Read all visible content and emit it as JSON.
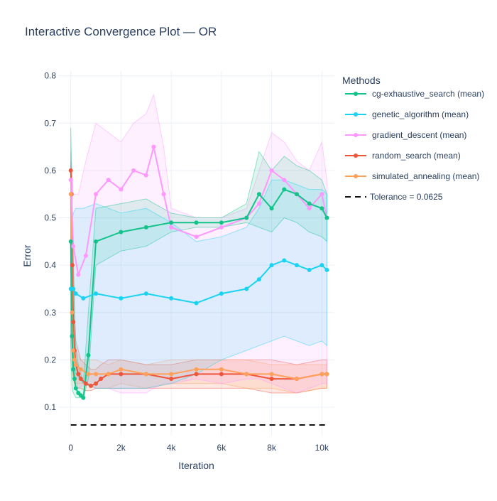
{
  "chart_data": {
    "type": "line",
    "title": "Interactive Convergence Plot — OR",
    "xlabel": "Iteration",
    "ylabel": "Error",
    "xlim": [
      -500,
      10500
    ],
    "ylim": [
      0.04,
      0.81
    ],
    "x_ticks": [
      0,
      2000,
      4000,
      6000,
      8000,
      10000
    ],
    "x_tick_labels": [
      "0",
      "2k",
      "4k",
      "6k",
      "8k",
      "10k"
    ],
    "y_ticks": [
      0.1,
      0.2,
      0.3,
      0.4,
      0.5,
      0.6,
      0.7,
      0.8
    ],
    "y_tick_labels": [
      "0.1",
      "0.2",
      "0.3",
      "0.4",
      "0.5",
      "0.6",
      "0.7",
      "0.8"
    ],
    "grid": true,
    "legend": {
      "title": "Methods",
      "placement": "right"
    },
    "series": [
      {
        "name": "cg-exhaustive_search (mean)",
        "color": "#12c38a",
        "x": [
          0,
          50,
          100,
          150,
          200,
          300,
          400,
          500,
          700,
          1000,
          2000,
          3000,
          4000,
          5000,
          6000,
          7000,
          7500,
          8000,
          8500,
          9000,
          9500,
          10000,
          10200
        ],
        "y": [
          0.45,
          0.25,
          0.18,
          0.16,
          0.14,
          0.13,
          0.125,
          0.12,
          0.21,
          0.45,
          0.47,
          0.48,
          0.49,
          0.49,
          0.49,
          0.5,
          0.55,
          0.52,
          0.56,
          0.55,
          0.53,
          0.52,
          0.5
        ],
        "band_upper": [
          0.69,
          0.55,
          0.42,
          0.3,
          0.22,
          0.19,
          0.17,
          0.15,
          0.3,
          0.52,
          0.53,
          0.54,
          0.51,
          0.5,
          0.5,
          0.53,
          0.64,
          0.6,
          0.63,
          0.61,
          0.6,
          0.58,
          0.55
        ],
        "band_lower": [
          0.2,
          0.14,
          0.13,
          0.125,
          0.12,
          0.12,
          0.12,
          0.12,
          0.16,
          0.4,
          0.43,
          0.44,
          0.47,
          0.48,
          0.48,
          0.49,
          0.48,
          0.47,
          0.5,
          0.49,
          0.47,
          0.46,
          0.45
        ]
      },
      {
        "name": "genetic_algorithm (mean)",
        "color": "#19d3f3",
        "x": [
          0,
          100,
          200,
          500,
          1000,
          2000,
          3000,
          4000,
          5000,
          6000,
          7000,
          7500,
          8000,
          8500,
          9000,
          9500,
          10000,
          10200
        ],
        "y": [
          0.35,
          0.35,
          0.34,
          0.33,
          0.34,
          0.33,
          0.34,
          0.33,
          0.32,
          0.34,
          0.35,
          0.37,
          0.4,
          0.41,
          0.4,
          0.39,
          0.4,
          0.39
        ],
        "band_upper": [
          0.47,
          0.51,
          0.52,
          0.52,
          0.53,
          0.51,
          0.52,
          0.49,
          0.45,
          0.46,
          0.48,
          0.52,
          0.58,
          0.58,
          0.57,
          0.56,
          0.56,
          0.55
        ],
        "band_lower": [
          0.23,
          0.2,
          0.17,
          0.15,
          0.14,
          0.14,
          0.14,
          0.15,
          0.17,
          0.2,
          0.22,
          0.23,
          0.24,
          0.25,
          0.24,
          0.23,
          0.24,
          0.23
        ]
      },
      {
        "name": "gradient_descent (mean)",
        "color": "#ff97ff",
        "x": [
          0,
          100,
          300,
          600,
          1000,
          1500,
          2000,
          2500,
          3000,
          3300,
          3700,
          4000,
          5000,
          6000,
          7000,
          7500,
          8000,
          8500,
          9000,
          9500,
          10000,
          10200
        ],
        "y": [
          0.58,
          0.44,
          0.38,
          0.42,
          0.55,
          0.58,
          0.56,
          0.6,
          0.59,
          0.65,
          0.55,
          0.48,
          0.46,
          0.48,
          0.5,
          0.53,
          0.6,
          0.58,
          0.55,
          0.52,
          0.55,
          0.5
        ],
        "band_upper": [
          0.64,
          0.55,
          0.55,
          0.62,
          0.7,
          0.68,
          0.66,
          0.7,
          0.72,
          0.76,
          0.65,
          0.52,
          0.5,
          0.5,
          0.52,
          0.6,
          0.68,
          0.66,
          0.62,
          0.6,
          0.66,
          0.58
        ],
        "band_lower": [
          0.38,
          0.18,
          0.14,
          0.15,
          0.14,
          0.14,
          0.13,
          0.13,
          0.13,
          0.14,
          0.15,
          0.15,
          0.16,
          0.15,
          0.16,
          0.16,
          0.15,
          0.14,
          0.13,
          0.14,
          0.15,
          0.15
        ]
      },
      {
        "name": "random_search (mean)",
        "color": "#ef553b",
        "x": [
          0,
          30,
          60,
          100,
          150,
          200,
          300,
          400,
          600,
          800,
          1000,
          1200,
          1500,
          2000,
          3000,
          4000,
          5000,
          6000,
          7000,
          8000,
          9000,
          10000,
          10200
        ],
        "y": [
          0.6,
          0.55,
          0.4,
          0.28,
          0.22,
          0.19,
          0.17,
          0.16,
          0.15,
          0.145,
          0.15,
          0.16,
          0.17,
          0.17,
          0.17,
          0.16,
          0.17,
          0.17,
          0.17,
          0.16,
          0.16,
          0.17,
          0.17
        ],
        "band_upper": [
          0.62,
          0.6,
          0.5,
          0.4,
          0.3,
          0.24,
          0.22,
          0.2,
          0.19,
          0.18,
          0.18,
          0.19,
          0.2,
          0.2,
          0.19,
          0.19,
          0.2,
          0.2,
          0.2,
          0.2,
          0.19,
          0.2,
          0.2
        ],
        "band_lower": [
          0.4,
          0.3,
          0.2,
          0.16,
          0.15,
          0.14,
          0.14,
          0.14,
          0.135,
          0.135,
          0.14,
          0.14,
          0.14,
          0.14,
          0.14,
          0.14,
          0.14,
          0.14,
          0.14,
          0.13,
          0.13,
          0.14,
          0.14
        ]
      },
      {
        "name": "simulated_annealing (mean)",
        "color": "#ffa15a",
        "x": [
          0,
          50,
          100,
          150,
          200,
          400,
          700,
          1000,
          1500,
          2000,
          3000,
          4000,
          5000,
          6000,
          7000,
          8000,
          9000,
          10000,
          10200
        ],
        "y": [
          0.55,
          0.3,
          0.22,
          0.2,
          0.19,
          0.18,
          0.17,
          0.17,
          0.17,
          0.18,
          0.17,
          0.17,
          0.18,
          0.18,
          0.17,
          0.17,
          0.16,
          0.17,
          0.17
        ],
        "band_upper": [
          0.56,
          0.5,
          0.3,
          0.25,
          0.22,
          0.2,
          0.2,
          0.2,
          0.19,
          0.2,
          0.19,
          0.2,
          0.2,
          0.2,
          0.2,
          0.19,
          0.19,
          0.19,
          0.19
        ],
        "band_lower": [
          0.45,
          0.18,
          0.16,
          0.15,
          0.15,
          0.15,
          0.15,
          0.14,
          0.14,
          0.15,
          0.14,
          0.15,
          0.15,
          0.15,
          0.14,
          0.14,
          0.13,
          0.14,
          0.14
        ]
      }
    ],
    "reference_line": {
      "name": "Tolerance = 0.0625",
      "y": 0.0625,
      "color": "#111111",
      "style": "dash"
    }
  }
}
